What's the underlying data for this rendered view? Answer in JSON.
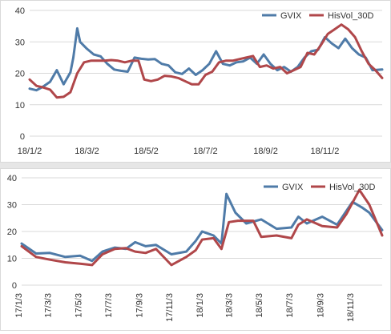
{
  "chart_data": [
    {
      "type": "line",
      "ylim": [
        0,
        40
      ],
      "yticks": [
        0,
        10,
        20,
        30,
        40
      ],
      "xticks": [
        "18/1/2",
        "18/3/2",
        "18/5/2",
        "18/7/2",
        "18/9/2",
        "18/11/2"
      ],
      "x_range": [
        "18/1/2",
        "18/12/31"
      ],
      "grid": true,
      "legend": "top-right",
      "series": [
        {
          "name": "GVIX",
          "color": "#4f7ba8",
          "points": [
            [
              "18/1/2",
              15.1
            ],
            [
              "18/1/9",
              14.6
            ],
            [
              "18/1/16",
              15.8
            ],
            [
              "18/1/23",
              17.3
            ],
            [
              "18/1/30",
              21.0
            ],
            [
              "18/2/6",
              16.5
            ],
            [
              "18/2/13",
              20.3
            ],
            [
              "18/2/16",
              25.0
            ],
            [
              "18/2/20",
              34.3
            ],
            [
              "18/2/23",
              30.0
            ],
            [
              "18/3/2",
              27.8
            ],
            [
              "18/3/9",
              26.0
            ],
            [
              "18/3/16",
              25.4
            ],
            [
              "18/3/23",
              23.0
            ],
            [
              "18/3/30",
              21.2
            ],
            [
              "18/4/6",
              20.8
            ],
            [
              "18/4/13",
              20.5
            ],
            [
              "18/4/20",
              25.0
            ],
            [
              "18/4/27",
              24.6
            ],
            [
              "18/5/4",
              24.4
            ],
            [
              "18/5/11",
              24.5
            ],
            [
              "18/5/18",
              23.0
            ],
            [
              "18/5/25",
              22.5
            ],
            [
              "18/6/1",
              20.3
            ],
            [
              "18/6/8",
              19.8
            ],
            [
              "18/6/15",
              21.5
            ],
            [
              "18/6/22",
              19.5
            ],
            [
              "18/6/29",
              21.0
            ],
            [
              "18/7/6",
              23.0
            ],
            [
              "18/7/13",
              27.0
            ],
            [
              "18/7/20",
              23.0
            ],
            [
              "18/7/27",
              22.5
            ],
            [
              "18/8/3",
              23.5
            ],
            [
              "18/8/10",
              23.8
            ],
            [
              "18/8/17",
              25.0
            ],
            [
              "18/8/24",
              23.0
            ],
            [
              "18/8/31",
              26.0
            ],
            [
              "18/9/7",
              23.0
            ],
            [
              "18/9/14",
              21.0
            ],
            [
              "18/9/21",
              22.0
            ],
            [
              "18/9/28",
              20.5
            ],
            [
              "18/10/5",
              22.0
            ],
            [
              "18/10/12",
              25.0
            ],
            [
              "18/10/19",
              27.0
            ],
            [
              "18/10/26",
              27.5
            ],
            [
              "18/11/2",
              31.5
            ],
            [
              "18/11/9",
              29.5
            ],
            [
              "18/11/16",
              28.0
            ],
            [
              "18/11/23",
              31.0
            ],
            [
              "18/11/30",
              28.0
            ],
            [
              "18/12/7",
              26.0
            ],
            [
              "18/12/14",
              25.0
            ],
            [
              "18/12/21",
              21.0
            ],
            [
              "18/12/31",
              21.2
            ]
          ]
        },
        {
          "name": "HisVol_30D",
          "color": "#b0474a",
          "points": [
            [
              "18/1/2",
              18.0
            ],
            [
              "18/1/9",
              16.0
            ],
            [
              "18/1/16",
              15.5
            ],
            [
              "18/1/23",
              14.8
            ],
            [
              "18/1/30",
              12.3
            ],
            [
              "18/2/6",
              12.5
            ],
            [
              "18/2/13",
              14.0
            ],
            [
              "18/2/20",
              20.0
            ],
            [
              "18/2/27",
              23.5
            ],
            [
              "18/3/6",
              24.0
            ],
            [
              "18/3/13",
              24.0
            ],
            [
              "18/3/20",
              24.0
            ],
            [
              "18/3/27",
              24.2
            ],
            [
              "18/4/3",
              24.0
            ],
            [
              "18/4/10",
              23.5
            ],
            [
              "18/4/17",
              24.0
            ],
            [
              "18/4/24",
              24.0
            ],
            [
              "18/4/30",
              18.0
            ],
            [
              "18/5/7",
              17.5
            ],
            [
              "18/5/14",
              18.0
            ],
            [
              "18/5/21",
              19.2
            ],
            [
              "18/5/28",
              19.0
            ],
            [
              "18/6/4",
              18.5
            ],
            [
              "18/6/11",
              17.5
            ],
            [
              "18/6/18",
              16.5
            ],
            [
              "18/6/25",
              16.5
            ],
            [
              "18/7/2",
              19.5
            ],
            [
              "18/7/9",
              20.5
            ],
            [
              "18/7/16",
              23.5
            ],
            [
              "18/7/23",
              24.0
            ],
            [
              "18/7/30",
              24.0
            ],
            [
              "18/8/6",
              24.5
            ],
            [
              "18/8/13",
              25.0
            ],
            [
              "18/8/20",
              25.5
            ],
            [
              "18/8/27",
              22.0
            ],
            [
              "18/9/3",
              22.5
            ],
            [
              "18/9/10",
              21.5
            ],
            [
              "18/9/17",
              22.0
            ],
            [
              "18/9/24",
              20.0
            ],
            [
              "18/10/1",
              21.0
            ],
            [
              "18/10/8",
              22.0
            ],
            [
              "18/10/15",
              26.5
            ],
            [
              "18/10/22",
              26.0
            ],
            [
              "18/10/29",
              29.0
            ],
            [
              "18/11/5",
              32.5
            ],
            [
              "18/11/12",
              34.0
            ],
            [
              "18/11/19",
              35.5
            ],
            [
              "18/11/26",
              34.0
            ],
            [
              "18/12/3",
              31.5
            ],
            [
              "18/12/10",
              27.0
            ],
            [
              "18/12/17",
              23.0
            ],
            [
              "18/12/24",
              21.0
            ],
            [
              "18/12/31",
              18.5
            ]
          ]
        }
      ]
    },
    {
      "type": "line",
      "ylim": [
        0,
        40
      ],
      "yticks": [
        0,
        10,
        20,
        30,
        40
      ],
      "xticks": [
        "17/1/3",
        "17/3/3",
        "17/5/3",
        "17/7/3",
        "17/9/3",
        "17/11/3",
        "18/1/3",
        "18/3/3",
        "18/5/3",
        "18/7/3",
        "18/9/3",
        "18/11/3"
      ],
      "x_range": [
        "17/1/3",
        "18/12/31"
      ],
      "grid": true,
      "legend": "top-right",
      "series": [
        {
          "name": "GVIX",
          "color": "#4f7ba8",
          "points": [
            [
              "17/1/3",
              15.5
            ],
            [
              "17/2/1",
              11.8
            ],
            [
              "17/3/1",
              12.0
            ],
            [
              "17/4/1",
              10.5
            ],
            [
              "17/5/1",
              11.0
            ],
            [
              "17/5/25",
              9.0
            ],
            [
              "17/6/15",
              12.5
            ],
            [
              "17/7/10",
              14.0
            ],
            [
              "17/8/1",
              13.5
            ],
            [
              "17/8/20",
              16.0
            ],
            [
              "17/9/10",
              14.5
            ],
            [
              "17/10/1",
              15.0
            ],
            [
              "17/11/1",
              11.5
            ],
            [
              "17/12/1",
              12.5
            ],
            [
              "17/12/20",
              16.5
            ],
            [
              "18/1/2",
              20.0
            ],
            [
              "18/1/25",
              18.5
            ],
            [
              "18/2/10",
              15.5
            ],
            [
              "18/2/20",
              34.0
            ],
            [
              "18/3/10",
              27.0
            ],
            [
              "18/4/1",
              23.0
            ],
            [
              "18/5/1",
              24.5
            ],
            [
              "18/6/1",
              21.0
            ],
            [
              "18/7/1",
              21.5
            ],
            [
              "18/7/15",
              25.5
            ],
            [
              "18/8/1",
              23.0
            ],
            [
              "18/9/1",
              25.5
            ],
            [
              "18/10/1",
              22.5
            ],
            [
              "18/11/1",
              31.0
            ],
            [
              "18/11/20",
              29.0
            ],
            [
              "18/12/5",
              27.0
            ],
            [
              "18/12/31",
              20.5
            ]
          ]
        },
        {
          "name": "HisVol_30D",
          "color": "#b0474a",
          "points": [
            [
              "17/1/3",
              14.5
            ],
            [
              "17/2/1",
              10.5
            ],
            [
              "17/3/1",
              9.5
            ],
            [
              "17/4/1",
              8.5
            ],
            [
              "17/5/1",
              8.0
            ],
            [
              "17/5/25",
              7.5
            ],
            [
              "17/6/15",
              11.5
            ],
            [
              "17/7/10",
              13.5
            ],
            [
              "17/8/1",
              13.8
            ],
            [
              "17/8/20",
              12.5
            ],
            [
              "17/9/10",
              12.0
            ],
            [
              "17/10/1",
              13.5
            ],
            [
              "17/11/1",
              7.5
            ],
            [
              "17/12/1",
              10.5
            ],
            [
              "17/12/20",
              13.0
            ],
            [
              "18/1/2",
              17.0
            ],
            [
              "18/1/25",
              17.5
            ],
            [
              "18/2/10",
              13.5
            ],
            [
              "18/2/25",
              23.5
            ],
            [
              "18/3/15",
              24.0
            ],
            [
              "18/4/15",
              24.0
            ],
            [
              "18/5/1",
              18.0
            ],
            [
              "18/6/1",
              18.5
            ],
            [
              "18/7/1",
              17.5
            ],
            [
              "18/7/15",
              22.5
            ],
            [
              "18/8/1",
              24.5
            ],
            [
              "18/9/1",
              22.0
            ],
            [
              "18/10/1",
              21.5
            ],
            [
              "18/10/20",
              26.5
            ],
            [
              "18/11/15",
              35.5
            ],
            [
              "18/12/5",
              30.0
            ],
            [
              "18/12/31",
              18.5
            ]
          ]
        }
      ]
    }
  ]
}
